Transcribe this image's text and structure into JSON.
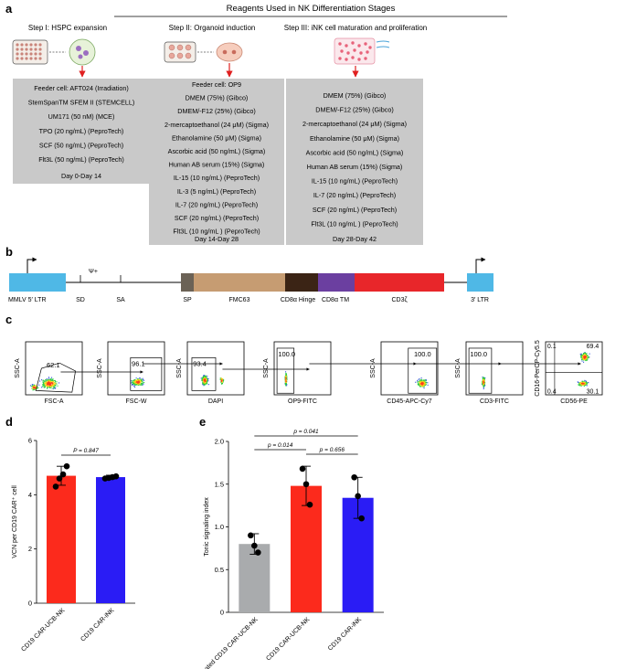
{
  "panels": {
    "a": {
      "letter": "a",
      "header": "Reagents Used in NK Differentiation Stages",
      "steps": [
        {
          "title": "Step I: HSPC expansion",
          "items": [
            "Feeder cell: AFT024 (Irradiation)",
            "StemSpanTM SFEM II (STEMCELL)",
            "UM171 (50 nM) (MCE)",
            "TPO (20 ng/mL) (PeproTech)",
            "SCF (50 ng/mL) (PeproTech)",
            "Flt3L (50 ng/mL) (PeproTech)"
          ],
          "days": "Day 0-Day 14"
        },
        {
          "title": "Step II: Organoid induction",
          "items": [
            "Feeder cell: OP9",
            "DMEM (75%) (Gibco)",
            "DMEM/-F12 (25%) (Gibco)",
            "2-mercaptoethanol (24 μM) (Sigma)",
            "Ethanolamine (50 μM) (Sigma)",
            "Ascorbic acid (50 ng/mL) (Sigma)",
            "Human AB serum (15%) (Sigma)",
            "IL-15 (10 ng/mL) (PeproTech)",
            "IL-3 (5 ng/mL) (PeproTech)",
            "IL-7 (20 ng/mL) (PeproTech)",
            "SCF (20 ng/mL) (PeproTech)",
            "Flt3L (10 ng/mL ) (PeproTech)"
          ],
          "days": "Day 14-Day 28"
        },
        {
          "title": "Step III: iNK cell maturation and proliferation",
          "items": [
            "DMEM (75%) (Gibco)",
            "DMEM/-F12 (25%) (Gibco)",
            "2-mercaptoethanol (24 μM) (Sigma)",
            "Ethanolamine (50 μM) (Sigma)",
            "Ascorbic acid (50 ng/mL) (Sigma)",
            "Human AB serum (15%) (Sigma)",
            "IL-15 (10 ng/mL) (PeproTech)",
            "IL-7 (20 ng/mL) (PeproTech)",
            "SCF (20 ng/mL) (PeproTech)",
            "Flt3L (10 ng/mL ) (PeproTech)"
          ],
          "days": "Day 28-Day 42"
        }
      ]
    },
    "b": {
      "letter": "b",
      "top_label": "Ψ+",
      "segments": [
        {
          "label": "MMLV 5′ LTR",
          "color": "#4fb8e6"
        },
        {
          "label": "SD",
          "color": "#000000"
        },
        {
          "label": "SA",
          "color": "#000000"
        },
        {
          "label": "SP",
          "color": "#6b6256"
        },
        {
          "label": "FMC63",
          "color": "#c69c72"
        },
        {
          "label": "CD8α Hinge",
          "color": "#3b2415"
        },
        {
          "label": "CD8α TM",
          "color": "#6b3fa0"
        },
        {
          "label": "CD3ζ",
          "color": "#e8262a"
        },
        {
          "label": "3′ LTR",
          "color": "#4fb8e6"
        }
      ]
    },
    "c": {
      "letter": "c",
      "plots": [
        {
          "ylabel": "SSC-A",
          "xlabel": "FSC-A",
          "gate_value": "62.1"
        },
        {
          "ylabel": "SSC-A",
          "xlabel": "FSC-W",
          "gate_value": "96.1"
        },
        {
          "ylabel": "SSC-A",
          "xlabel": "DAPI",
          "gate_value": "93.4"
        },
        {
          "ylabel": "SSC-A",
          "xlabel": "OP9-FITC",
          "gate_value": "100.0"
        },
        {
          "ylabel": "SSC-A",
          "xlabel": "CD45-APC-Cy7",
          "gate_value": "100.0"
        },
        {
          "ylabel": "SSC-A",
          "xlabel": "CD3-FITC",
          "gate_value": "100.0"
        },
        {
          "ylabel": "CD16-PerCP-Cy5.5",
          "xlabel": "CD56-PE",
          "quadrants": [
            "0.1",
            "69.4",
            "0.4",
            "30.1"
          ]
        }
      ]
    },
    "d": {
      "letter": "d",
      "pvalue": "P = 0.847"
    },
    "e": {
      "letter": "e",
      "pvalues": [
        "p = 0.041",
        "p = 0.014",
        "p = 0.656"
      ]
    }
  },
  "chart_data": [
    {
      "type": "bar",
      "categories": [
        "CD19 CAR-UCB-NK",
        "CD19 CAR-iNK"
      ],
      "values": [
        4.7,
        4.65
      ],
      "errors": [
        0.35,
        0.07
      ],
      "points": [
        [
          4.3,
          4.6,
          4.75,
          5.05
        ],
        [
          4.6,
          4.62,
          4.65,
          4.68
        ]
      ],
      "colors": [
        "#fc2a1c",
        "#2a1cf5"
      ],
      "ylabel": "VCN per CD19 CAR⁺ cell",
      "ylim": [
        0,
        6
      ],
      "yticks": [
        "0",
        "2",
        "4",
        "6"
      ]
    },
    {
      "type": "bar",
      "categories": [
        "Truncated CD19 CAR-UCB-NK",
        "CD19 CAR-UCB-NK",
        "CD19 CAR-iNK"
      ],
      "values": [
        0.8,
        1.48,
        1.34
      ],
      "errors": [
        0.12,
        0.23,
        0.24
      ],
      "points": [
        [
          0.9,
          0.78,
          0.7
        ],
        [
          1.68,
          1.5,
          1.26
        ],
        [
          1.58,
          1.36,
          1.1
        ]
      ],
      "colors": [
        "#a9abad",
        "#fc2a1c",
        "#2a1cf5"
      ],
      "ylabel": "Tonic signaling index",
      "ylim": [
        0,
        2.0
      ],
      "yticks": [
        "0",
        "0.5",
        "1.0",
        "1.5",
        "2.0"
      ]
    }
  ]
}
